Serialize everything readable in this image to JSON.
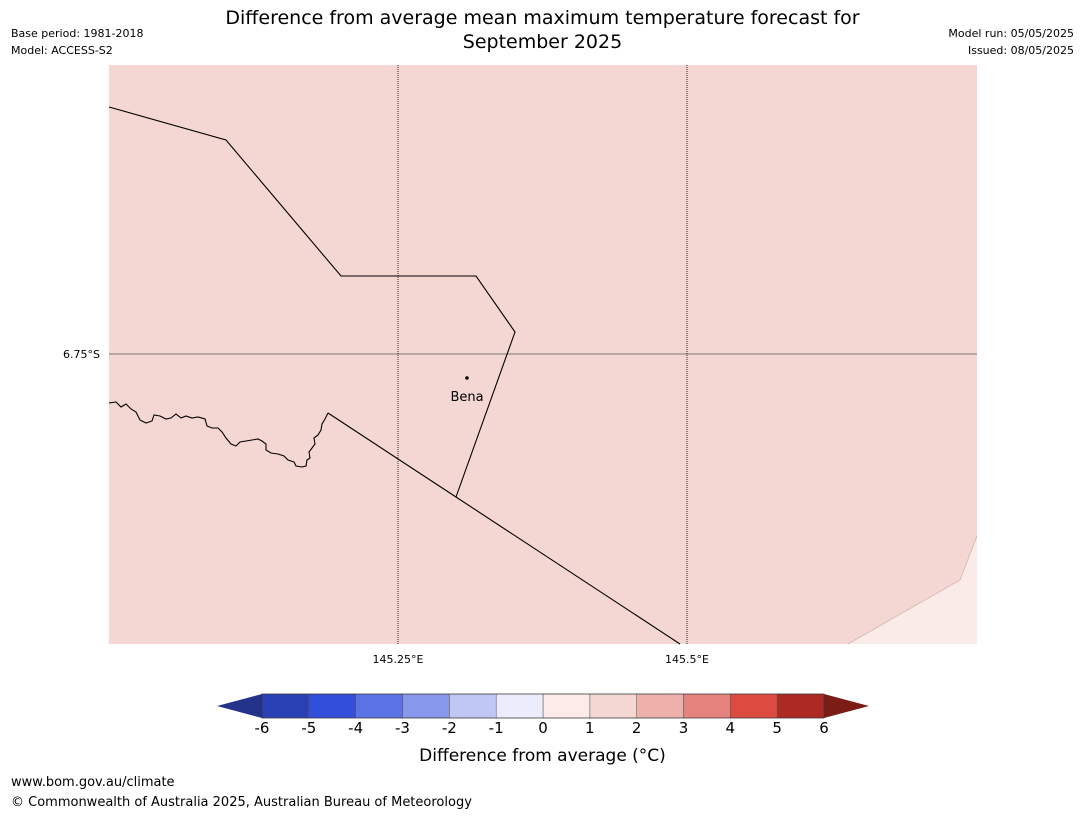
{
  "header": {
    "title_line1": "Difference from average mean maximum temperature forecast for",
    "title_line2": "September 2025",
    "base_period": "Base period: 1981-2018",
    "model": "Model: ACCESS-S2",
    "model_run": "Model run: 05/05/2025",
    "issued": "Issued: 08/05/2025"
  },
  "map": {
    "fill_color": "#f4d6d3",
    "light_fill_color": "#fbebe8",
    "town_label": "Bena",
    "lat_label": "6.75°S",
    "lon_labels": [
      "145.25°E",
      "145.5°E"
    ]
  },
  "colorbar": {
    "ticks": [
      "-6",
      "-5",
      "-4",
      "-3",
      "-2",
      "-1",
      "0",
      "1",
      "2",
      "3",
      "4",
      "5",
      "6"
    ],
    "colors": [
      "#233389",
      "#2a40b5",
      "#324fdc",
      "#5b72e4",
      "#8797ec",
      "#c1c7f5",
      "#ebedfc",
      "#fcebe8",
      "#f4d6d3",
      "#eeb0ab",
      "#e6827d",
      "#dc4a40",
      "#ac2a22",
      "#7c1c17"
    ],
    "label": "Difference from average ($^\\circ$C)",
    "label_display": "Difference from average (°C)"
  },
  "footer": {
    "url": "www.bom.gov.au/climate",
    "copyright": "© Commonwealth of Australia 2025, Australian Bureau of Meteorology"
  }
}
